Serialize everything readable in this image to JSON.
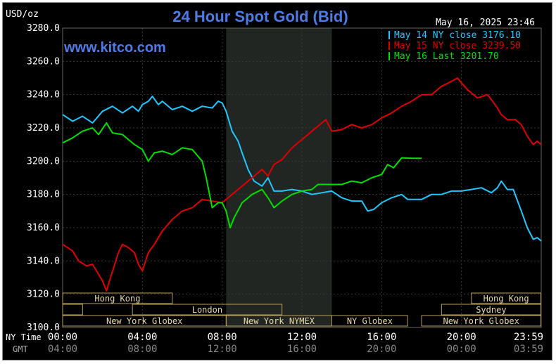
{
  "header": {
    "units": "USD/oz",
    "title": "24 Hour Spot Gold (Bid)",
    "timestamp": "May 16, 2025 23:46",
    "watermark": "www.kitco.com"
  },
  "legend": [
    {
      "label": "May 14 NY close 3176.10",
      "color": "#1ec8ff"
    },
    {
      "label": "May 15 NY close 3239.50",
      "color": "#e00000"
    },
    {
      "label": "May 16 Last 3201.70",
      "color": "#00e000"
    }
  ],
  "axis_rows": {
    "row1_label": "NY Time",
    "row2_label": "GMT",
    "ny_ticks": [
      "00:00",
      "04:00",
      "08:00",
      "12:00",
      "16:00",
      "20:00",
      "23:59"
    ],
    "gmt_ticks": [
      "04:00",
      "08:00",
      "12:00",
      "16:00",
      "20:00",
      "00:00",
      "03:59"
    ]
  },
  "sessions": [
    {
      "label": "Hong Kong",
      "row": 0,
      "start": 0,
      "end": 5.5
    },
    {
      "label": "",
      "row": 1,
      "start": 0,
      "end": 1
    },
    {
      "label": "London",
      "row": 1,
      "start": 3.5,
      "end": 11
    },
    {
      "label": "New York Globex",
      "row": 2,
      "start": 0,
      "end": 8.2
    },
    {
      "label": "New York NYMEX",
      "row": 2,
      "start": 8.2,
      "end": 13.5
    },
    {
      "label": "NY Globex",
      "row": 2,
      "start": 13.5,
      "end": 17.3
    },
    {
      "label": "Hong Kong",
      "row": 0,
      "start": 20.5,
      "end": 23.98
    },
    {
      "label": "Sydney",
      "row": 1,
      "start": 19,
      "end": 23.98
    },
    {
      "label": "New York Globex",
      "row": 2,
      "start": 18,
      "end": 23.98
    }
  ],
  "chart_data": {
    "type": "line",
    "title": "24 Hour Spot Gold (Bid)",
    "ylabel": "USD/oz",
    "xlabel": "NY Time",
    "xlim": [
      0,
      24
    ],
    "ylim": [
      3100,
      3280
    ],
    "y_ticks": [
      3100,
      3120,
      3140,
      3160,
      3180,
      3200,
      3220,
      3240,
      3260,
      3280
    ],
    "grid": true,
    "shaded_region": [
      8.2,
      13.5
    ],
    "series": [
      {
        "name": "May 14 NY close 3176.10",
        "color": "#1ec8ff",
        "points": [
          [
            0,
            3228
          ],
          [
            0.5,
            3224
          ],
          [
            1,
            3227
          ],
          [
            1.5,
            3223
          ],
          [
            2,
            3230
          ],
          [
            2.5,
            3233
          ],
          [
            3,
            3229
          ],
          [
            3.5,
            3233
          ],
          [
            3.8,
            3230
          ],
          [
            4,
            3234
          ],
          [
            4.3,
            3236
          ],
          [
            4.5,
            3239
          ],
          [
            4.8,
            3234
          ],
          [
            5,
            3236
          ],
          [
            5.5,
            3231
          ],
          [
            6,
            3233
          ],
          [
            6.5,
            3230
          ],
          [
            7,
            3233
          ],
          [
            7.5,
            3232
          ],
          [
            7.8,
            3236
          ],
          [
            8,
            3235
          ],
          [
            8.2,
            3230
          ],
          [
            8.5,
            3218
          ],
          [
            8.8,
            3212
          ],
          [
            9,
            3205
          ],
          [
            9.3,
            3195
          ],
          [
            9.6,
            3188
          ],
          [
            10,
            3185
          ],
          [
            10.3,
            3190
          ],
          [
            10.6,
            3182
          ],
          [
            11,
            3182
          ],
          [
            11.5,
            3183
          ],
          [
            12,
            3182
          ],
          [
            12.5,
            3180
          ],
          [
            13,
            3181
          ],
          [
            13.5,
            3182
          ],
          [
            14,
            3178
          ],
          [
            14.5,
            3176
          ],
          [
            15,
            3176
          ],
          [
            15.3,
            3170
          ],
          [
            15.6,
            3171
          ],
          [
            16,
            3175
          ],
          [
            16.5,
            3178
          ],
          [
            17,
            3180
          ],
          [
            17.3,
            3177
          ],
          [
            18,
            3177
          ],
          [
            18.5,
            3180
          ],
          [
            19,
            3180
          ],
          [
            19.5,
            3182
          ],
          [
            20,
            3182
          ],
          [
            20.5,
            3183
          ],
          [
            21,
            3184
          ],
          [
            21.5,
            3181
          ],
          [
            21.8,
            3184
          ],
          [
            22,
            3188
          ],
          [
            22.3,
            3183
          ],
          [
            22.6,
            3183
          ],
          [
            23,
            3170
          ],
          [
            23.3,
            3160
          ],
          [
            23.6,
            3153
          ],
          [
            23.8,
            3154
          ],
          [
            24,
            3152
          ]
        ]
      },
      {
        "name": "May 15 NY close 3239.50",
        "color": "#e00000",
        "points": [
          [
            0,
            3150
          ],
          [
            0.5,
            3146
          ],
          [
            0.8,
            3140
          ],
          [
            1.2,
            3137
          ],
          [
            1.5,
            3138
          ],
          [
            1.8,
            3132
          ],
          [
            2,
            3128
          ],
          [
            2.2,
            3122
          ],
          [
            2.4,
            3130
          ],
          [
            2.8,
            3145
          ],
          [
            3,
            3150
          ],
          [
            3.3,
            3148
          ],
          [
            3.6,
            3145
          ],
          [
            3.8,
            3138
          ],
          [
            4,
            3134
          ],
          [
            4.3,
            3145
          ],
          [
            4.6,
            3150
          ],
          [
            5,
            3158
          ],
          [
            5.5,
            3165
          ],
          [
            6,
            3170
          ],
          [
            6.5,
            3172
          ],
          [
            7,
            3177
          ],
          [
            7.5,
            3176
          ],
          [
            8,
            3175
          ],
          [
            8.5,
            3180
          ],
          [
            9,
            3185
          ],
          [
            9.5,
            3190
          ],
          [
            10,
            3195
          ],
          [
            10.3,
            3191
          ],
          [
            10.6,
            3198
          ],
          [
            11,
            3201
          ],
          [
            11.5,
            3208
          ],
          [
            12,
            3213
          ],
          [
            12.5,
            3218
          ],
          [
            13,
            3223
          ],
          [
            13.2,
            3225
          ],
          [
            13.5,
            3218
          ],
          [
            14,
            3219
          ],
          [
            14.5,
            3222
          ],
          [
            15,
            3220
          ],
          [
            15.5,
            3222
          ],
          [
            16,
            3226
          ],
          [
            16.5,
            3229
          ],
          [
            17,
            3233
          ],
          [
            17.5,
            3236
          ],
          [
            18,
            3240
          ],
          [
            18.5,
            3240
          ],
          [
            19,
            3245
          ],
          [
            19.5,
            3248
          ],
          [
            19.8,
            3250
          ],
          [
            20,
            3247
          ],
          [
            20.3,
            3243
          ],
          [
            20.8,
            3238
          ],
          [
            21.3,
            3240
          ],
          [
            21.5,
            3237
          ],
          [
            21.8,
            3232
          ],
          [
            22,
            3228
          ],
          [
            22.3,
            3225
          ],
          [
            22.7,
            3225
          ],
          [
            23,
            3222
          ],
          [
            23.3,
            3215
          ],
          [
            23.6,
            3210
          ],
          [
            23.8,
            3212
          ],
          [
            24,
            3210
          ]
        ]
      },
      {
        "name": "May 16 Last 3201.70",
        "color": "#00e000",
        "points": [
          [
            0,
            3211
          ],
          [
            0.5,
            3214
          ],
          [
            1,
            3218
          ],
          [
            1.5,
            3220
          ],
          [
            1.8,
            3216
          ],
          [
            2.2,
            3223
          ],
          [
            2.5,
            3217
          ],
          [
            3,
            3216
          ],
          [
            3.3,
            3213
          ],
          [
            3.6,
            3210
          ],
          [
            4,
            3207
          ],
          [
            4.3,
            3200
          ],
          [
            4.6,
            3205
          ],
          [
            5,
            3206
          ],
          [
            5.5,
            3204
          ],
          [
            6,
            3208
          ],
          [
            6.5,
            3207
          ],
          [
            7,
            3200
          ],
          [
            7.2,
            3190
          ],
          [
            7.5,
            3172
          ],
          [
            7.8,
            3175
          ],
          [
            8,
            3175
          ],
          [
            8.2,
            3170
          ],
          [
            8.4,
            3160
          ],
          [
            8.6,
            3166
          ],
          [
            9,
            3175
          ],
          [
            9.5,
            3180
          ],
          [
            10,
            3183
          ],
          [
            10.3,
            3178
          ],
          [
            10.6,
            3172
          ],
          [
            11,
            3176
          ],
          [
            11.5,
            3180
          ],
          [
            12,
            3182
          ],
          [
            12.5,
            3183
          ],
          [
            12.8,
            3186
          ],
          [
            13,
            3186
          ],
          [
            13.5,
            3186
          ],
          [
            14,
            3186
          ],
          [
            14.5,
            3188
          ],
          [
            15,
            3187
          ],
          [
            15.5,
            3190
          ],
          [
            16,
            3192
          ],
          [
            16.3,
            3198
          ],
          [
            16.6,
            3196
          ],
          [
            17,
            3202
          ],
          [
            17.5,
            3201.7
          ],
          [
            18,
            3201.7
          ]
        ]
      }
    ]
  }
}
